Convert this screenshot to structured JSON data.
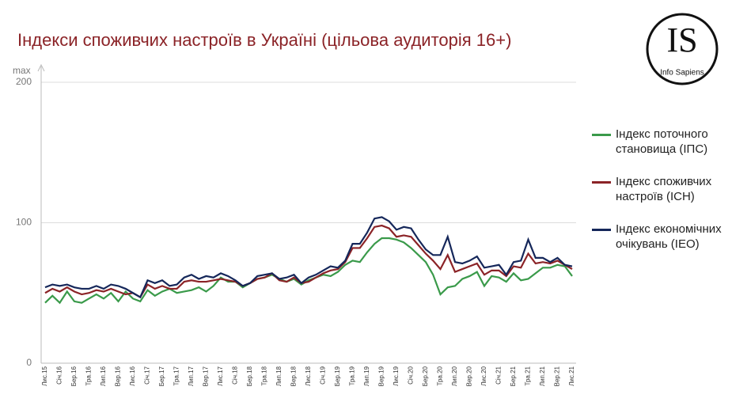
{
  "chart_data": {
    "type": "line",
    "title": "Індекси споживчих настроїв в Україні (цільова аудиторія 16+)",
    "y_axis_label": "max",
    "logo": {
      "initials": "IS",
      "name": "Info Sapiens"
    },
    "categories": [
      "Лис.15",
      null,
      "Січ.16",
      null,
      "Бер.16",
      null,
      "Тра.16",
      null,
      "Лип.16",
      null,
      "Вер.16",
      null,
      "Лис.16",
      null,
      "Січ.17",
      null,
      "Бер.17",
      null,
      "Тра.17",
      null,
      "Лип.17",
      null,
      "Вер.17",
      null,
      "Лис.17",
      null,
      "Січ.18",
      null,
      "Бер.18",
      null,
      "Тра.18",
      null,
      "Лип.18",
      null,
      "Вер.18",
      null,
      "Лис.18",
      null,
      "Січ.19",
      null,
      "Бер.19",
      null,
      "Тра.19",
      null,
      "Лип.19",
      null,
      "Вер.19",
      null,
      "Лис.19",
      null,
      "Січ.20",
      null,
      "Бер.20",
      null,
      "Тра.20",
      null,
      "Лип.20",
      null,
      "Вер.20",
      null,
      "Лис.20",
      null,
      "Січ.21",
      null,
      "Бер.21",
      null,
      "Тра.21",
      null,
      "Лип.21",
      null,
      "Вер.21",
      null,
      "Лис.21"
    ],
    "series": [
      {
        "name": "Індекс поточного становища (ІПС)",
        "color": "#3a9a4a",
        "values": [
          43,
          48,
          43,
          51,
          44,
          43,
          46,
          49,
          46,
          50,
          44,
          51,
          46,
          44,
          52,
          48,
          51,
          53,
          50,
          51,
          52,
          54,
          51,
          55,
          61,
          58,
          58,
          54,
          57,
          60,
          61,
          63,
          60,
          58,
          60,
          56,
          59,
          61,
          63,
          62,
          65,
          70,
          73,
          72,
          79,
          85,
          89,
          89,
          88,
          86,
          82,
          77,
          72,
          63,
          49,
          54,
          55,
          60,
          62,
          65,
          55,
          62,
          61,
          58,
          64,
          59,
          60,
          64,
          68,
          68,
          70,
          69,
          62
        ]
      },
      {
        "name": "Індекс споживчих настроїв (ІСН)",
        "color": "#8b2327",
        "values": [
          50,
          53,
          51,
          54,
          51,
          49,
          50,
          52,
          51,
          53,
          51,
          49,
          50,
          47,
          56,
          53,
          55,
          53,
          53,
          58,
          59,
          58,
          58,
          59,
          60,
          59,
          58,
          55,
          57,
          60,
          61,
          64,
          59,
          58,
          61,
          57,
          58,
          61,
          64,
          66,
          67,
          72,
          82,
          82,
          89,
          97,
          98,
          96,
          90,
          91,
          90,
          84,
          78,
          73,
          67,
          77,
          65,
          67,
          69,
          71,
          63,
          66,
          66,
          62,
          69,
          68,
          78,
          71,
          72,
          71,
          73,
          70,
          67
        ]
      },
      {
        "name": "Індекс економічних очікувань (ІЕО)",
        "color": "#15275a",
        "values": [
          54,
          56,
          55,
          56,
          54,
          53,
          53,
          55,
          53,
          56,
          55,
          53,
          50,
          47,
          59,
          57,
          59,
          55,
          56,
          61,
          63,
          60,
          62,
          61,
          64,
          62,
          59,
          55,
          57,
          62,
          63,
          64,
          60,
          61,
          63,
          57,
          61,
          63,
          66,
          69,
          68,
          73,
          85,
          85,
          93,
          103,
          104,
          101,
          95,
          97,
          96,
          88,
          81,
          77,
          77,
          90,
          72,
          71,
          73,
          76,
          68,
          69,
          70,
          63,
          72,
          73,
          88,
          75,
          75,
          72,
          75,
          70,
          69
        ]
      }
    ],
    "ylim": [
      0,
      200
    ],
    "yticks": [
      0,
      100,
      200
    ],
    "grid": true
  }
}
